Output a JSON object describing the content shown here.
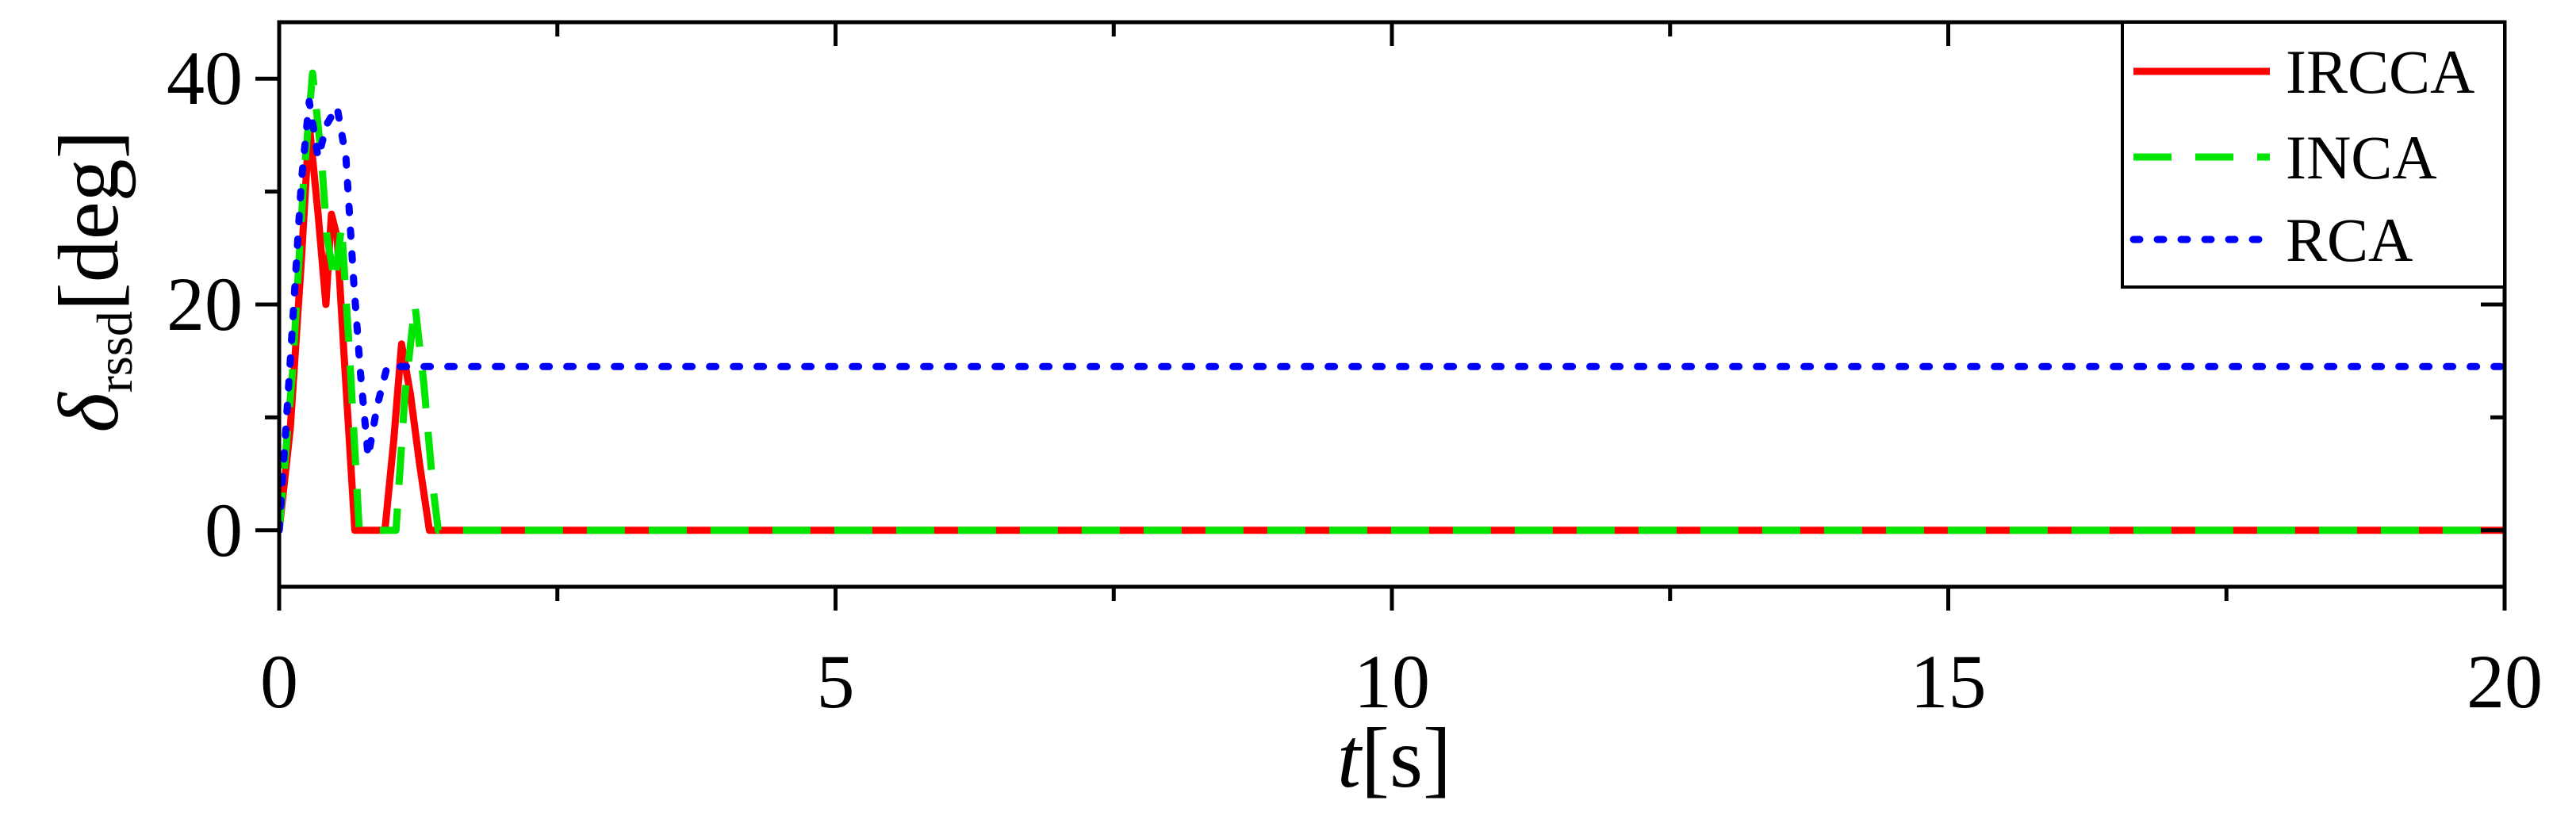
{
  "chart_data": {
    "type": "line",
    "title": "",
    "xlabel": {
      "var": "t",
      "unit": "[s]"
    },
    "ylabel": {
      "var": "δ",
      "sub": "rssd",
      "unit": "[deg]"
    },
    "xlim": [
      0,
      20
    ],
    "ylim": [
      -5,
      45
    ],
    "x_ticks": [
      0,
      5,
      10,
      15,
      20
    ],
    "x_tick_labels": [
      "0",
      "5",
      "10",
      "15",
      "20"
    ],
    "x_minor_ticks": [
      2.5,
      7.5,
      12.5,
      17.5
    ],
    "y_ticks": [
      0,
      20,
      40
    ],
    "y_tick_labels": [
      "0",
      "20",
      "40"
    ],
    "y_minor_ticks": [
      10,
      30
    ],
    "grid": false,
    "legend_position": "top-right",
    "series": [
      {
        "name": "IRCCA",
        "color": "#ff0000",
        "style": "solid",
        "points": [
          [
            0,
            0
          ],
          [
            0.1,
            9
          ],
          [
            0.2,
            24
          ],
          [
            0.27,
            36
          ],
          [
            0.35,
            28
          ],
          [
            0.42,
            20
          ],
          [
            0.47,
            28
          ],
          [
            0.52,
            26
          ],
          [
            0.58,
            16
          ],
          [
            0.68,
            0
          ],
          [
            0.95,
            0
          ],
          [
            1.03,
            8
          ],
          [
            1.1,
            16.5
          ],
          [
            1.18,
            12
          ],
          [
            1.26,
            6
          ],
          [
            1.35,
            0
          ],
          [
            20,
            0
          ]
        ]
      },
      {
        "name": "INCA",
        "color": "#00e600",
        "style": "dashed",
        "points": [
          [
            0,
            0
          ],
          [
            0.12,
            14
          ],
          [
            0.22,
            31
          ],
          [
            0.3,
            40.5
          ],
          [
            0.38,
            33
          ],
          [
            0.43,
            26
          ],
          [
            0.5,
            22
          ],
          [
            0.56,
            27
          ],
          [
            0.63,
            16
          ],
          [
            0.72,
            0
          ],
          [
            1.05,
            0
          ],
          [
            1.13,
            12
          ],
          [
            1.22,
            20
          ],
          [
            1.3,
            13
          ],
          [
            1.38,
            4
          ],
          [
            1.43,
            0
          ],
          [
            20,
            0
          ]
        ]
      },
      {
        "name": "RCA",
        "color": "#0000ff",
        "style": "dotted",
        "points": [
          [
            0,
            0
          ],
          [
            0.1,
            15
          ],
          [
            0.2,
            31
          ],
          [
            0.27,
            38
          ],
          [
            0.35,
            33
          ],
          [
            0.43,
            36
          ],
          [
            0.52,
            37.5
          ],
          [
            0.6,
            33
          ],
          [
            0.67,
            22
          ],
          [
            0.73,
            14
          ],
          [
            0.8,
            6.5
          ],
          [
            0.88,
            11
          ],
          [
            0.97,
            14.5
          ],
          [
            1.3,
            14.5
          ],
          [
            20,
            14.5
          ]
        ]
      }
    ]
  }
}
